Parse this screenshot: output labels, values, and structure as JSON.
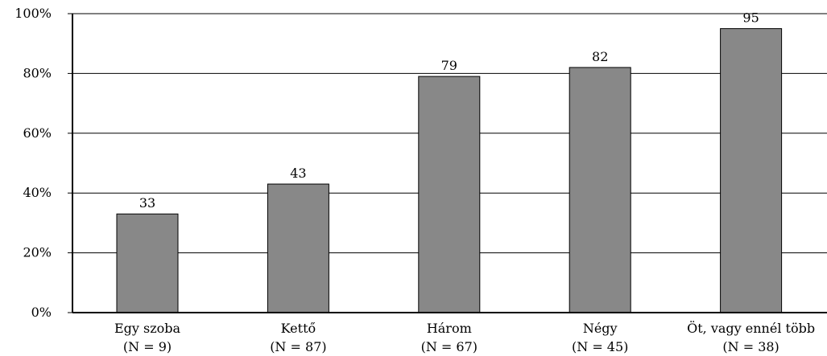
{
  "chart_data": {
    "type": "bar",
    "categories": [
      "Egy szoba",
      "Kettő",
      "Három",
      "Négy",
      "Öt, vagy ennél több"
    ],
    "sublabels": [
      "(N = 9)",
      "(N = 87)",
      "(N = 67)",
      "(N = 45)",
      "(N = 38)"
    ],
    "values": [
      33,
      43,
      79,
      82,
      95
    ],
    "data_labels": [
      "33",
      "43",
      "79",
      "82",
      "95"
    ],
    "yticks": [
      "0%",
      "20%",
      "40%",
      "60%",
      "80%",
      "100%"
    ],
    "ylim": [
      0,
      100
    ],
    "grid": true,
    "colors": {
      "bar": "#888888",
      "stroke": "#000000"
    }
  }
}
